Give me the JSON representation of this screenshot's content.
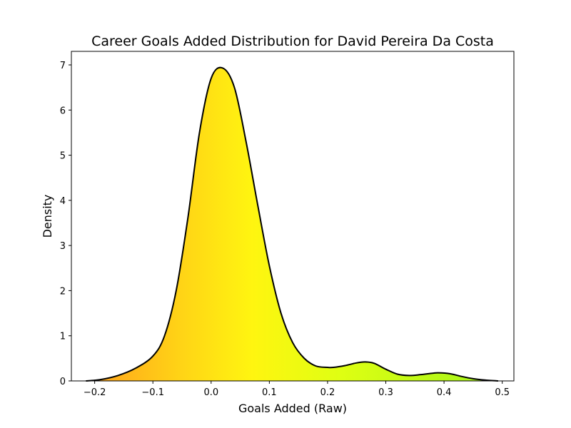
{
  "chart_data": {
    "type": "area",
    "title": "Career Goals Added Distribution for David Pereira Da Costa",
    "xlabel": "Goals Added (Raw)",
    "ylabel": "Density",
    "xlim": [
      -0.24,
      0.52
    ],
    "ylim": [
      0,
      7.3
    ],
    "x_ticks": [
      -0.2,
      -0.1,
      0.0,
      0.1,
      0.2,
      0.3,
      0.4,
      0.5
    ],
    "x_tick_labels": [
      "−0.2",
      "−0.1",
      "0.0",
      "0.1",
      "0.2",
      "0.3",
      "0.4",
      "0.5"
    ],
    "y_ticks": [
      0,
      1,
      2,
      3,
      4,
      5,
      6,
      7
    ],
    "y_tick_labels": [
      "0",
      "1",
      "2",
      "3",
      "4",
      "5",
      "6",
      "7"
    ],
    "grid": false,
    "legend": "none",
    "line_color": "#000000",
    "fill_gradient": "orange-yellow-green by x",
    "series": [
      {
        "x": [
          -0.215,
          -0.19,
          -0.16,
          -0.13,
          -0.1,
          -0.08,
          -0.06,
          -0.04,
          -0.02,
          0.0,
          0.02,
          0.04,
          0.06,
          0.08,
          0.1,
          0.12,
          0.14,
          0.16,
          0.18,
          0.2,
          0.21,
          0.23,
          0.25,
          0.265,
          0.28,
          0.3,
          0.32,
          0.34,
          0.36,
          0.38,
          0.39,
          0.41,
          0.43,
          0.45,
          0.47,
          0.493
        ],
        "values": [
          0.0,
          0.03,
          0.12,
          0.28,
          0.55,
          1.0,
          2.0,
          3.6,
          5.5,
          6.7,
          6.93,
          6.5,
          5.3,
          3.9,
          2.55,
          1.5,
          0.85,
          0.5,
          0.33,
          0.3,
          0.3,
          0.34,
          0.4,
          0.42,
          0.39,
          0.26,
          0.15,
          0.12,
          0.14,
          0.17,
          0.18,
          0.16,
          0.1,
          0.05,
          0.02,
          0.0
        ]
      }
    ]
  }
}
